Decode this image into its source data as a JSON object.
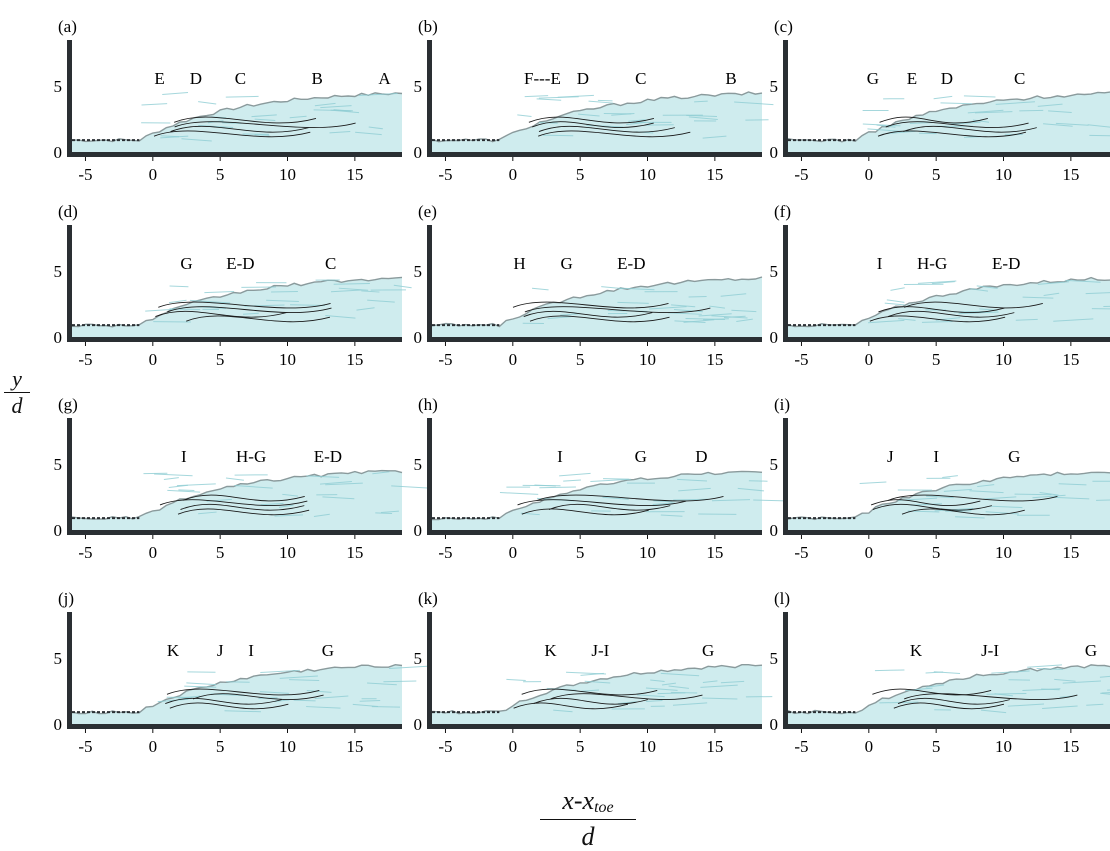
{
  "figure": {
    "ylabel": {
      "numerator": "y",
      "denominator": "d"
    },
    "xlabel": {
      "numerator_main": "x-x",
      "numerator_sub": "toe",
      "denominator": "d"
    },
    "x_ticks": [
      "-5",
      "0",
      "5",
      "10",
      "15"
    ],
    "y_ticks": [
      "0",
      "5"
    ],
    "x_range": [
      -6,
      18.5
    ],
    "y_range": [
      0,
      8.5
    ],
    "colors": {
      "water": "#bfe6e8",
      "water_dark": "#8fcdd3",
      "surface": "#8a9a9c",
      "axis": "#2a2f33",
      "vortex": "#1a1a1a"
    },
    "panels": [
      {
        "tag": "(a)",
        "markers": [
          {
            "text": "E",
            "x": 0.5
          },
          {
            "text": "D",
            "x": 3.2
          },
          {
            "text": "C",
            "x": 6.5
          },
          {
            "text": "B",
            "x": 12.2
          },
          {
            "text": "A",
            "x": 17.2
          }
        ]
      },
      {
        "tag": "(b)",
        "markers": [
          {
            "text": "F---E",
            "x": 2.2
          },
          {
            "text": "D",
            "x": 5.2
          },
          {
            "text": "C",
            "x": 9.5
          },
          {
            "text": "B",
            "x": 16.2
          }
        ]
      },
      {
        "tag": "(c)",
        "markers": [
          {
            "text": "G",
            "x": 0.3
          },
          {
            "text": "E",
            "x": 3.2
          },
          {
            "text": "D",
            "x": 5.8
          },
          {
            "text": "C",
            "x": 11.2
          }
        ]
      },
      {
        "tag": "(d)",
        "markers": [
          {
            "text": "G",
            "x": 2.5
          },
          {
            "text": "E-D",
            "x": 6.5
          },
          {
            "text": "C",
            "x": 13.2
          }
        ]
      },
      {
        "tag": "(e)",
        "markers": [
          {
            "text": "H",
            "x": 0.5
          },
          {
            "text": "G",
            "x": 4.0
          },
          {
            "text": "E-D",
            "x": 8.8
          }
        ]
      },
      {
        "tag": "(f)",
        "markers": [
          {
            "text": "I",
            "x": 0.8
          },
          {
            "text": "H-G",
            "x": 4.7
          },
          {
            "text": "E-D",
            "x": 10.2
          }
        ]
      },
      {
        "tag": "(g)",
        "markers": [
          {
            "text": "I",
            "x": 2.3
          },
          {
            "text": "H-G",
            "x": 7.3
          },
          {
            "text": "E-D",
            "x": 13.0
          }
        ]
      },
      {
        "tag": "(h)",
        "markers": [
          {
            "text": "I",
            "x": 3.5
          },
          {
            "text": "G",
            "x": 9.5
          },
          {
            "text": "D",
            "x": 14.0
          }
        ]
      },
      {
        "tag": "(i)",
        "markers": [
          {
            "text": "J",
            "x": 1.6
          },
          {
            "text": "I",
            "x": 5.0
          },
          {
            "text": "G",
            "x": 10.8
          }
        ]
      },
      {
        "tag": "(j)",
        "markers": [
          {
            "text": "K",
            "x": 1.5
          },
          {
            "text": "J",
            "x": 5.0
          },
          {
            "text": "I",
            "x": 7.3
          },
          {
            "text": "G",
            "x": 13.0
          }
        ]
      },
      {
        "tag": "(k)",
        "markers": [
          {
            "text": "K",
            "x": 2.8
          },
          {
            "text": "J-I",
            "x": 6.5
          },
          {
            "text": "G",
            "x": 14.5
          }
        ]
      },
      {
        "tag": "(l)",
        "markers": [
          {
            "text": "K",
            "x": 3.5
          },
          {
            "text": "J-I",
            "x": 9.0
          },
          {
            "text": "G",
            "x": 16.5
          }
        ]
      }
    ]
  }
}
